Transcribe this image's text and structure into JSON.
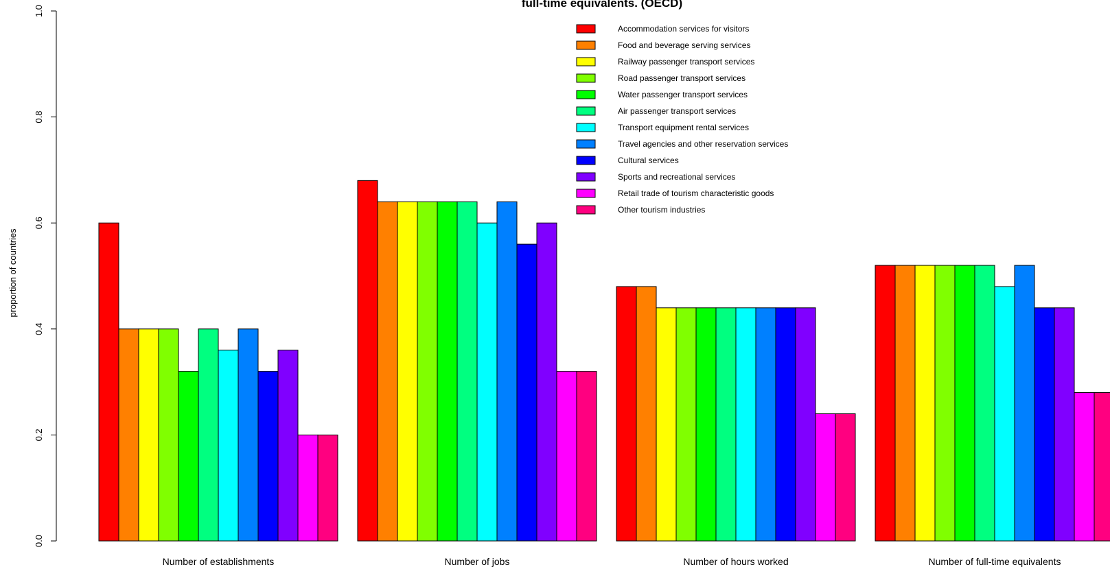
{
  "chart_data": {
    "type": "bar",
    "title": "full-time equivalents. (OECD)",
    "ylabel": "proportion of countries",
    "xlabel": "",
    "ylim": [
      0,
      1
    ],
    "yticks": [
      "0.0",
      "0.2",
      "0.4",
      "0.6",
      "0.8",
      "1.0"
    ],
    "categories": [
      "Number of establishments",
      "Number of jobs",
      "Number of hours worked",
      "Number of full-time equivalents"
    ],
    "legend_position": "top-center",
    "series": [
      {
        "name": "Accommodation services for visitors",
        "color": "#FF0000",
        "values": [
          0.6,
          0.68,
          0.48,
          0.52
        ]
      },
      {
        "name": "Food and beverage serving services",
        "color": "#FF8000",
        "values": [
          0.4,
          0.64,
          0.48,
          0.52
        ]
      },
      {
        "name": "Railway passenger transport services",
        "color": "#FFFF00",
        "values": [
          0.4,
          0.64,
          0.44,
          0.52
        ]
      },
      {
        "name": "Road passenger transport services",
        "color": "#80FF00",
        "values": [
          0.4,
          0.64,
          0.44,
          0.52
        ]
      },
      {
        "name": "Water passenger transport services",
        "color": "#00FF00",
        "values": [
          0.32,
          0.64,
          0.44,
          0.52
        ]
      },
      {
        "name": "Air passenger transport services",
        "color": "#00FF80",
        "values": [
          0.4,
          0.64,
          0.44,
          0.52
        ]
      },
      {
        "name": "Transport equipment rental services",
        "color": "#00FFFF",
        "values": [
          0.36,
          0.6,
          0.44,
          0.48
        ]
      },
      {
        "name": "Travel agencies and other reservation services",
        "color": "#0080FF",
        "values": [
          0.4,
          0.64,
          0.44,
          0.52
        ]
      },
      {
        "name": "Cultural services",
        "color": "#0000FF",
        "values": [
          0.32,
          0.56,
          0.44,
          0.44
        ]
      },
      {
        "name": "Sports and recreational services",
        "color": "#8000FF",
        "values": [
          0.36,
          0.6,
          0.44,
          0.44
        ]
      },
      {
        "name": "Retail trade of tourism characteristic goods",
        "color": "#FF00FF",
        "values": [
          0.2,
          0.32,
          0.24,
          0.28
        ]
      },
      {
        "name": "Other tourism industries",
        "color": "#FF0080",
        "values": [
          0.2,
          0.32,
          0.24,
          0.28
        ]
      }
    ]
  }
}
